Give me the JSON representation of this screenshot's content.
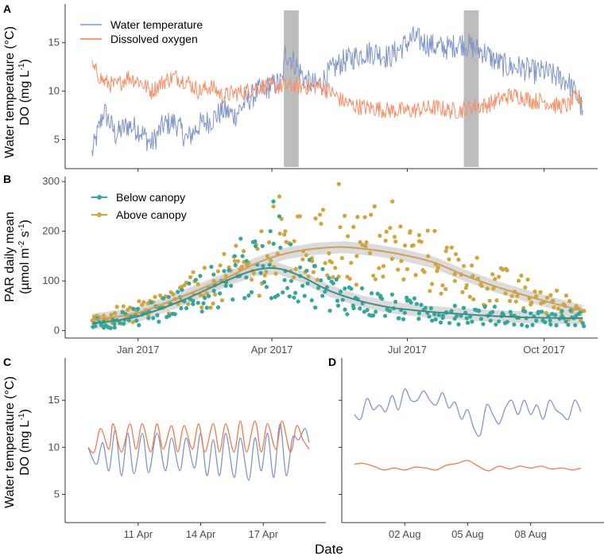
{
  "colors": {
    "water_temp": "#8096c8",
    "dissolved_oxygen": "#f07a4f",
    "do_light": "#f4916a",
    "below_canopy": "#35a69c",
    "above_canopy": "#cfa53e",
    "below_smooth": "#3d8f86",
    "above_smooth": "#cf9f55",
    "shade": "#bdbdbd",
    "ci": "#cccccc"
  },
  "x_title": "Date",
  "chart_data": [
    {
      "panel": "A",
      "type": "line",
      "ylabel_line1": "Water temperature (°C)",
      "ylabel_line2": "DO (mg L",
      "ylabel_sup": "-1",
      "ylabel_end": ")",
      "ylim": [
        2,
        19
      ],
      "yticks": [
        5,
        10,
        15
      ],
      "ytick_labels": [
        "5",
        "10",
        "15"
      ],
      "x_unit": "days since 2016-12-01",
      "xlim": [
        -18,
        340
      ],
      "xticks": [
        31,
        121,
        212,
        304
      ],
      "legend": [
        {
          "name": "Water temperature"
        },
        {
          "name": "Dissolved oxygen"
        }
      ],
      "shaded_ranges": [
        [
          129,
          139
        ],
        [
          250,
          260
        ]
      ],
      "series": [
        {
          "name": "Water temperature",
          "x": [
            0,
            8,
            16,
            24,
            32,
            40,
            48,
            56,
            64,
            72,
            80,
            88,
            96,
            104,
            112,
            120,
            128,
            130,
            136,
            144,
            152,
            160,
            168,
            176,
            184,
            192,
            200,
            208,
            216,
            224,
            232,
            240,
            248,
            256,
            264,
            272,
            280,
            288,
            296,
            304,
            312,
            320,
            326,
            330
          ],
          "y": [
            3.5,
            8.0,
            5.5,
            6.5,
            6.0,
            4.5,
            6.5,
            6.8,
            5.0,
            6.5,
            7.0,
            8.0,
            7.5,
            9.0,
            10.0,
            10.5,
            11.0,
            14.0,
            13.0,
            11.0,
            10.5,
            12.0,
            13.0,
            13.5,
            14.0,
            14.0,
            13.5,
            14.5,
            15.5,
            15.0,
            14.5,
            14.5,
            15.0,
            14.5,
            14.0,
            13.0,
            12.5,
            12.5,
            12.0,
            12.0,
            11.5,
            11.0,
            9.5,
            8.0
          ]
        },
        {
          "name": "Dissolved oxygen",
          "x": [
            0,
            8,
            16,
            24,
            32,
            40,
            48,
            56,
            64,
            72,
            80,
            88,
            96,
            104,
            112,
            120,
            128,
            136,
            144,
            152,
            160,
            168,
            176,
            184,
            192,
            200,
            208,
            216,
            224,
            232,
            240,
            248,
            256,
            264,
            272,
            280,
            288,
            296,
            304,
            312,
            320,
            326,
            330
          ],
          "y": [
            12.5,
            11.0,
            10.5,
            11.5,
            11.0,
            10.0,
            11.0,
            11.5,
            11.0,
            10.0,
            10.5,
            9.5,
            9.8,
            10.0,
            10.5,
            10.5,
            10.5,
            10.5,
            10.5,
            10.5,
            10.0,
            9.0,
            8.5,
            8.3,
            8.2,
            8.0,
            8.0,
            8.0,
            8.2,
            8.3,
            8.0,
            8.0,
            8.5,
            8.5,
            9.0,
            9.5,
            9.5,
            9.0,
            9.0,
            8.5,
            8.5,
            9.5,
            9.0
          ]
        }
      ]
    },
    {
      "panel": "B",
      "type": "scatter",
      "ylabel_line1": "PAR daily mean",
      "ylabel_line2": "(µmol m",
      "ylabel_sup1": "-2",
      "ylabel_mid": " s",
      "ylabel_sup2": "-1",
      "ylabel_end": ")",
      "ylim": [
        -15,
        310
      ],
      "yticks": [
        0,
        100,
        200,
        300
      ],
      "ytick_labels": [
        "0",
        "100",
        "200",
        "300"
      ],
      "xlim": [
        -18,
        340
      ],
      "xticks": [
        31,
        121,
        212,
        304
      ],
      "xtick_labels": [
        "Jan 2017",
        "Apr 2017",
        "Jul 2017",
        "Oct 2017"
      ],
      "legend": [
        {
          "name": "Below canopy"
        },
        {
          "name": "Above canopy"
        }
      ],
      "smooth": [
        {
          "name": "Below canopy",
          "x": [
            0,
            30,
            60,
            90,
            110,
            125,
            140,
            160,
            180,
            200,
            220,
            240,
            260,
            280,
            300,
            320,
            330
          ],
          "y": [
            14,
            28,
            60,
            100,
            122,
            125,
            110,
            80,
            60,
            47,
            40,
            35,
            31,
            28,
            26,
            25,
            25
          ]
        },
        {
          "name": "Above canopy",
          "x": [
            0,
            30,
            60,
            90,
            110,
            130,
            150,
            170,
            190,
            210,
            230,
            250,
            270,
            290,
            310,
            330
          ],
          "y": [
            22,
            35,
            68,
            105,
            135,
            155,
            165,
            168,
            162,
            152,
            137,
            112,
            90,
            72,
            55,
            40
          ]
        }
      ],
      "series": [
        {
          "name": "Below canopy",
          "x": [
            2,
            8,
            15,
            22,
            30,
            38,
            45,
            52,
            60,
            68,
            75,
            82,
            90,
            96,
            100,
            104,
            110,
            115,
            120,
            122,
            126,
            130,
            134,
            140,
            145,
            150,
            155,
            160,
            165,
            170,
            176,
            182,
            188,
            194,
            200,
            206,
            212,
            220,
            228,
            236,
            244,
            252,
            260,
            268,
            276,
            284,
            292,
            300,
            308,
            316,
            324,
            330
          ],
          "y": [
            15,
            18,
            14,
            22,
            20,
            25,
            18,
            30,
            45,
            60,
            55,
            80,
            90,
            150,
            185,
            140,
            170,
            130,
            200,
            260,
            230,
            120,
            100,
            110,
            95,
            130,
            70,
            40,
            60,
            85,
            45,
            55,
            30,
            70,
            40,
            25,
            60,
            35,
            45,
            30,
            50,
            25,
            40,
            20,
            35,
            30,
            25,
            35,
            20,
            30,
            25,
            15
          ]
        },
        {
          "name": "Above canopy",
          "x": [
            2,
            8,
            15,
            22,
            30,
            38,
            45,
            52,
            60,
            68,
            75,
            82,
            90,
            96,
            102,
            108,
            114,
            118,
            122,
            126,
            130,
            136,
            142,
            148,
            154,
            160,
            166,
            172,
            178,
            184,
            190,
            196,
            202,
            208,
            214,
            220,
            226,
            232,
            238,
            244,
            250,
            256,
            262,
            270,
            278,
            286,
            294,
            302,
            310,
            318,
            326,
            330
          ],
          "y": [
            25,
            30,
            20,
            35,
            40,
            30,
            45,
            55,
            60,
            75,
            70,
            100,
            110,
            140,
            160,
            120,
            200,
            150,
            250,
            270,
            200,
            180,
            160,
            140,
            215,
            140,
            295,
            190,
            150,
            170,
            250,
            130,
            260,
            140,
            200,
            180,
            150,
            120,
            160,
            100,
            130,
            110,
            90,
            85,
            75,
            70,
            65,
            55,
            60,
            50,
            45,
            40
          ]
        }
      ]
    },
    {
      "panel": "C",
      "type": "line",
      "ylabel_line1": "Water temperature (°C)",
      "ylabel_line2": "DO (mg L",
      "ylabel_sup": "-1",
      "ylabel_end": ")",
      "ylim": [
        2,
        19.5
      ],
      "yticks": [
        5,
        10,
        15
      ],
      "ytick_labels": [
        "5",
        "10",
        "15"
      ],
      "x_unit": "days since 2017-04-08",
      "xlim": [
        -0.5,
        12.0
      ],
      "xticks": [
        3,
        6,
        9
      ],
      "xtick_labels": [
        "11 Apr",
        "14 Apr",
        "17 Apr"
      ],
      "series": [
        {
          "name": "Water temperature",
          "x": [
            0.6,
            1.0,
            1.3,
            1.6,
            1.9,
            2.2,
            2.5,
            2.8,
            3.2,
            3.5,
            3.9,
            4.3,
            4.6,
            5.0,
            5.3,
            5.7,
            6.0,
            6.3,
            6.6,
            6.9,
            7.2,
            7.6,
            7.9,
            8.3,
            8.6,
            8.9,
            9.2,
            9.5,
            9.8,
            10.1,
            10.4,
            10.7,
            11.0,
            11.2
          ],
          "y": [
            10.0,
            8.2,
            10.5,
            7.5,
            11.8,
            7.0,
            11.5,
            7.2,
            11.5,
            7.3,
            11.5,
            7.5,
            11.0,
            7.5,
            11.0,
            7.8,
            11.5,
            7.0,
            10.8,
            7.0,
            11.5,
            6.8,
            11.0,
            6.5,
            11.0,
            7.5,
            11.5,
            6.8,
            12.5,
            7.0,
            11.0,
            10.8,
            12.0,
            10.5
          ]
        },
        {
          "name": "Dissolved oxygen",
          "x": [
            0.6,
            0.9,
            1.2,
            1.6,
            1.8,
            2.2,
            2.6,
            2.9,
            3.2,
            3.6,
            3.9,
            4.2,
            4.6,
            4.9,
            5.2,
            5.6,
            5.9,
            6.2,
            6.6,
            6.9,
            7.2,
            7.6,
            7.9,
            8.2,
            8.6,
            8.9,
            9.2,
            9.6,
            9.9,
            10.3,
            10.6,
            10.9,
            11.2
          ],
          "y": [
            10.0,
            9.5,
            12.0,
            9.8,
            12.5,
            9.5,
            12.5,
            9.8,
            12.5,
            9.5,
            12.5,
            9.8,
            12.3,
            9.5,
            12.3,
            9.8,
            12.5,
            9.5,
            12.5,
            9.5,
            12.5,
            9.5,
            12.8,
            9.5,
            12.8,
            9.5,
            12.5,
            9.8,
            12.8,
            9.5,
            12.3,
            10.8,
            9.8
          ]
        }
      ]
    },
    {
      "panel": "D",
      "type": "line",
      "ylim": [
        2,
        19.5
      ],
      "x_unit": "days since 2017-07-30",
      "xlim": [
        0.0,
        12.5
      ],
      "xticks": [
        3,
        6,
        9
      ],
      "xtick_labels": [
        "02 Aug",
        "05 Aug",
        "08 Aug"
      ],
      "series": [
        {
          "name": "Water temperature",
          "x": [
            0.6,
            0.9,
            1.2,
            1.5,
            1.8,
            2.1,
            2.4,
            2.7,
            3.0,
            3.3,
            3.6,
            3.9,
            4.2,
            4.5,
            4.8,
            5.1,
            5.4,
            5.7,
            6.0,
            6.3,
            6.6,
            6.9,
            7.2,
            7.5,
            7.8,
            8.1,
            8.4,
            8.7,
            9.0,
            9.3,
            9.6,
            9.9,
            10.2,
            10.5,
            10.8,
            11.1,
            11.4
          ],
          "y": [
            13.5,
            13.0,
            15.2,
            14.0,
            14.5,
            13.8,
            15.5,
            14.0,
            16.2,
            15.0,
            15.0,
            16.0,
            15.0,
            14.5,
            15.8,
            14.2,
            14.8,
            13.0,
            14.0,
            12.0,
            11.3,
            14.5,
            13.5,
            12.5,
            14.2,
            15.0,
            13.5,
            15.0,
            13.5,
            14.5,
            13.0,
            15.0,
            14.0,
            13.5,
            13.0,
            15.0,
            13.8
          ]
        },
        {
          "name": "Dissolved oxygen",
          "x": [
            0.6,
            1.0,
            1.5,
            2.0,
            2.5,
            3.0,
            3.5,
            4.0,
            4.5,
            5.0,
            5.5,
            6.0,
            6.5,
            7.0,
            7.5,
            8.0,
            8.5,
            9.0,
            9.5,
            10.0,
            10.5,
            11.0,
            11.4
          ],
          "y": [
            8.2,
            8.3,
            8.0,
            7.6,
            7.8,
            7.6,
            7.9,
            7.8,
            7.6,
            8.1,
            8.3,
            8.6,
            8.0,
            7.5,
            8.0,
            7.7,
            8.0,
            7.8,
            8.0,
            7.7,
            7.8,
            7.6,
            7.8
          ]
        }
      ]
    }
  ]
}
